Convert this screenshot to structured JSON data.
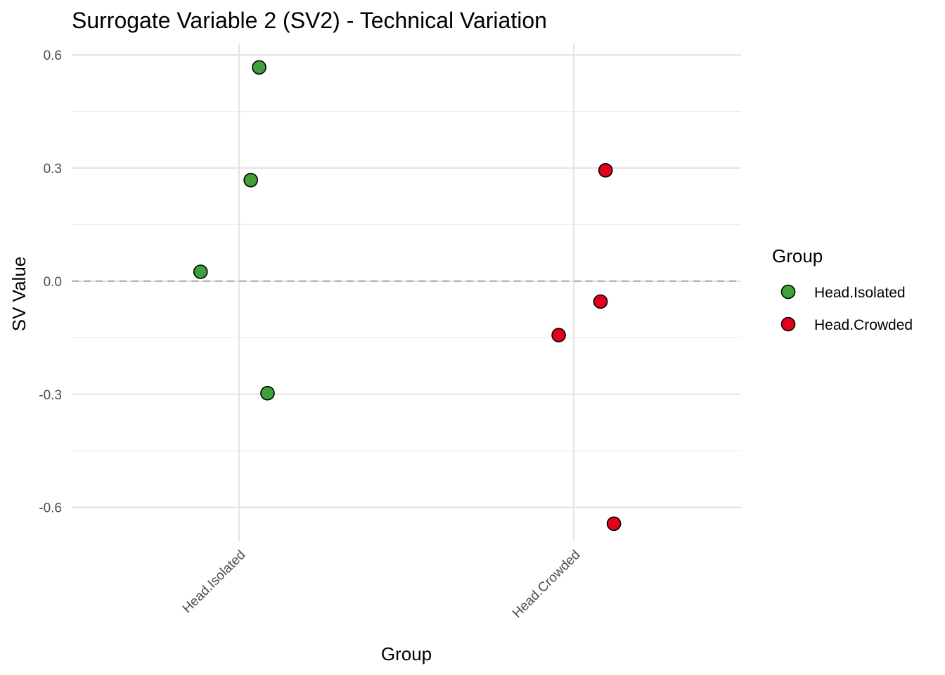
{
  "chart_data": {
    "type": "scatter",
    "title": "Surrogate Variable 2 (SV2) - Technical Variation",
    "xlabel": "Group",
    "ylabel": "SV Value",
    "categories": [
      "Head.Isolated",
      "Head.Crowded"
    ],
    "ylim": [
      -0.69,
      0.63
    ],
    "y_ticks": [
      0.6,
      0.3,
      0.0,
      -0.3,
      -0.6
    ],
    "y_tick_labels": [
      "0.6",
      "0.3",
      "0.0",
      "-0.3",
      "-0.6"
    ],
    "reference_line": {
      "y": 0,
      "style": "dashed"
    },
    "legend": {
      "title": "Group",
      "position": "right"
    },
    "series": [
      {
        "name": "Head.Isolated",
        "color": "#3fa13a",
        "points": [
          {
            "category": "Head.Isolated",
            "jitter": 0.06,
            "y": 0.567
          },
          {
            "category": "Head.Isolated",
            "jitter": 0.035,
            "y": 0.268
          },
          {
            "category": "Head.Isolated",
            "jitter": -0.115,
            "y": 0.025
          },
          {
            "category": "Head.Isolated",
            "jitter": 0.085,
            "y": -0.297
          }
        ]
      },
      {
        "name": "Head.Crowded",
        "color": "#e3001b",
        "points": [
          {
            "category": "Head.Crowded",
            "jitter": 0.095,
            "y": 0.294
          },
          {
            "category": "Head.Crowded",
            "jitter": 0.08,
            "y": -0.054
          },
          {
            "category": "Head.Crowded",
            "jitter": -0.045,
            "y": -0.143
          },
          {
            "category": "Head.Crowded",
            "jitter": 0.12,
            "y": -0.643
          }
        ]
      }
    ]
  }
}
